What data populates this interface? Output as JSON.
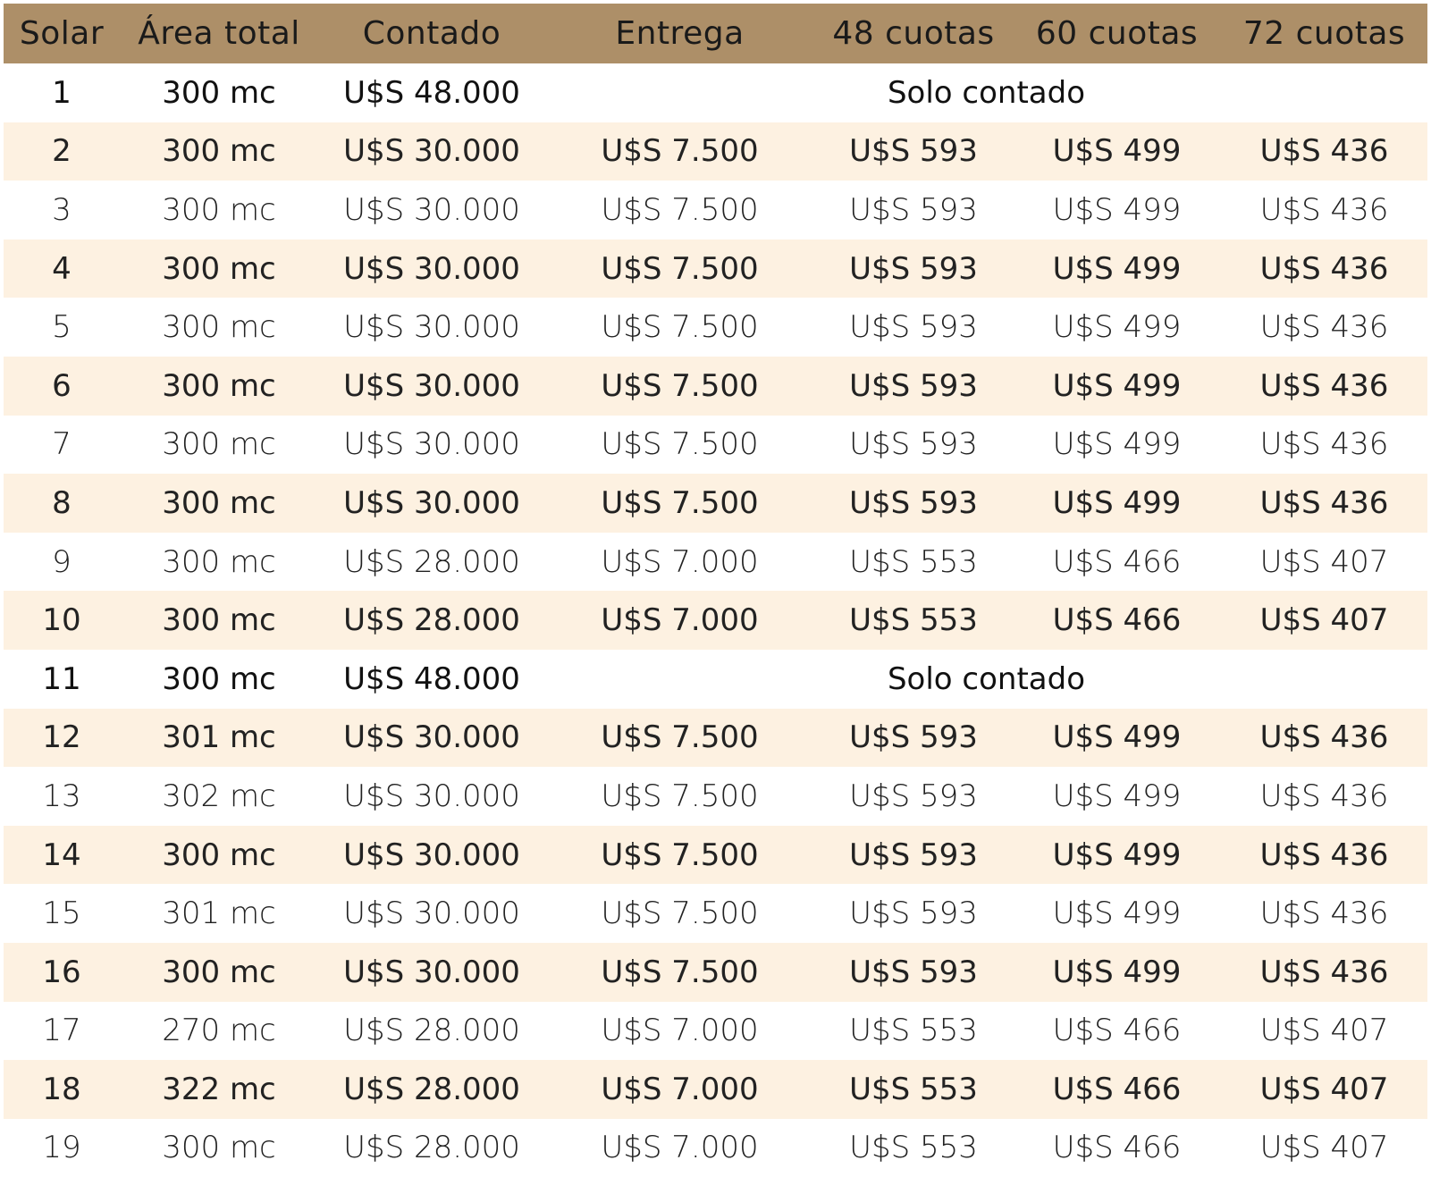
{
  "table": {
    "headers": [
      "Solar",
      "Área total",
      "Contado",
      "Entrega",
      "48 cuotas",
      "60 cuotas",
      "72 cuotas"
    ],
    "rows": [
      {
        "solar": "1",
        "area": "300 mc",
        "contado": "U$S 48.000",
        "note": "Solo contado"
      },
      {
        "solar": "2",
        "area": "300 mc",
        "contado": "U$S 30.000",
        "entrega": "U$S 7.500",
        "c48": "U$S 593",
        "c60": "U$S 499",
        "c72": "U$S 436"
      },
      {
        "solar": "3",
        "area": "300 mc",
        "contado": "U$S 30.000",
        "entrega": "U$S 7.500",
        "c48": "U$S 593",
        "c60": "U$S 499",
        "c72": "U$S 436"
      },
      {
        "solar": "4",
        "area": "300 mc",
        "contado": "U$S 30.000",
        "entrega": "U$S 7.500",
        "c48": "U$S 593",
        "c60": "U$S 499",
        "c72": "U$S 436"
      },
      {
        "solar": "5",
        "area": "300 mc",
        "contado": "U$S 30.000",
        "entrega": "U$S 7.500",
        "c48": "U$S 593",
        "c60": "U$S 499",
        "c72": "U$S 436"
      },
      {
        "solar": "6",
        "area": "300 mc",
        "contado": "U$S 30.000",
        "entrega": "U$S 7.500",
        "c48": "U$S 593",
        "c60": "U$S 499",
        "c72": "U$S 436"
      },
      {
        "solar": "7",
        "area": "300 mc",
        "contado": "U$S 30.000",
        "entrega": "U$S 7.500",
        "c48": "U$S 593",
        "c60": "U$S 499",
        "c72": "U$S 436"
      },
      {
        "solar": "8",
        "area": "300 mc",
        "contado": "U$S 30.000",
        "entrega": "U$S 7.500",
        "c48": "U$S 593",
        "c60": "U$S 499",
        "c72": "U$S 436"
      },
      {
        "solar": "9",
        "area": "300 mc",
        "contado": "U$S 28.000",
        "entrega": "U$S 7.000",
        "c48": "U$S 553",
        "c60": "U$S 466",
        "c72": "U$S 407"
      },
      {
        "solar": "10",
        "area": "300 mc",
        "contado": "U$S 28.000",
        "entrega": "U$S 7.000",
        "c48": "U$S 553",
        "c60": "U$S 466",
        "c72": "U$S 407"
      },
      {
        "solar": "11",
        "area": "300 mc",
        "contado": "U$S 48.000",
        "note": "Solo contado"
      },
      {
        "solar": "12",
        "area": "301 mc",
        "contado": "U$S 30.000",
        "entrega": "U$S 7.500",
        "c48": "U$S 593",
        "c60": "U$S 499",
        "c72": "U$S 436"
      },
      {
        "solar": "13",
        "area": "302 mc",
        "contado": "U$S 30.000",
        "entrega": "U$S 7.500",
        "c48": "U$S 593",
        "c60": "U$S 499",
        "c72": "U$S 436"
      },
      {
        "solar": "14",
        "area": "300 mc",
        "contado": "U$S 30.000",
        "entrega": "U$S 7.500",
        "c48": "U$S 593",
        "c60": "U$S 499",
        "c72": "U$S 436"
      },
      {
        "solar": "15",
        "area": "301 mc",
        "contado": "U$S 30.000",
        "entrega": "U$S 7.500",
        "c48": "U$S 593",
        "c60": "U$S 499",
        "c72": "U$S 436"
      },
      {
        "solar": "16",
        "area": "300 mc",
        "contado": "U$S 30.000",
        "entrega": "U$S 7.500",
        "c48": "U$S 593",
        "c60": "U$S 499",
        "c72": "U$S 436"
      },
      {
        "solar": "17",
        "area": "270 mc",
        "contado": "U$S 28.000",
        "entrega": "U$S 7.000",
        "c48": "U$S 553",
        "c60": "U$S 466",
        "c72": "U$S 407"
      },
      {
        "solar": "18",
        "area": "322 mc",
        "contado": "U$S 28.000",
        "entrega": "U$S 7.000",
        "c48": "U$S 553",
        "c60": "U$S 466",
        "c72": "U$S 407"
      },
      {
        "solar": "19",
        "area": "300 mc",
        "contado": "U$S 28.000",
        "entrega": "U$S 7.000",
        "c48": "U$S 553",
        "c60": "U$S 466",
        "c72": "U$S 407"
      }
    ]
  },
  "colors": {
    "header_bg": "#ad8f68",
    "shaded_row_bg": "#fdf1e1",
    "plain_row_bg": "#ffffff"
  }
}
